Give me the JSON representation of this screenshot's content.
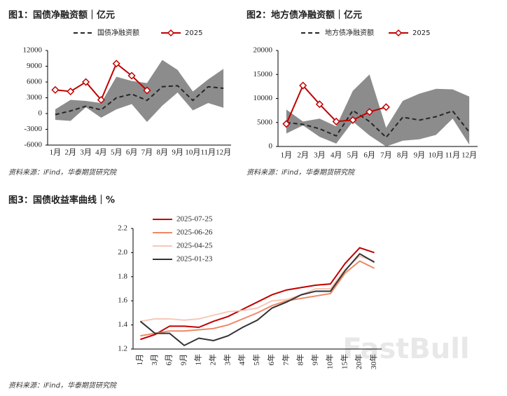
{
  "chart_data": [
    {
      "type": "line",
      "title": "图1：国债净融资额｜亿元",
      "source": "资料来源：iFind，华泰期货研究院",
      "categories": [
        "1月",
        "2月",
        "3月",
        "4月",
        "5月",
        "6月",
        "7月",
        "8月",
        "9月",
        "10月",
        "11月",
        "12月"
      ],
      "ylim": [
        -6000,
        12000
      ],
      "yticks": [
        -6000,
        -3000,
        0,
        3000,
        6000,
        9000,
        12000
      ],
      "range": {
        "color": "#8c8c8c",
        "upper": [
          800,
          2600,
          2400,
          2000,
          7000,
          6200,
          5800,
          10200,
          8300,
          4200,
          6500,
          8500
        ],
        "lower": [
          -1200,
          -1400,
          1200,
          -800,
          800,
          1800,
          -1600,
          1500,
          4000,
          600,
          2000,
          1100
        ]
      },
      "series": [
        {
          "name": "国债净融资额",
          "color": "#262626",
          "dash": true,
          "values": [
            -200,
            500,
            1400,
            700,
            3000,
            3700,
            2500,
            5100,
            5300,
            2500,
            5100,
            4800
          ]
        },
        {
          "name": "2025",
          "color": "#c00000",
          "marker": "diamond",
          "values": [
            4500,
            4200,
            6000,
            2600,
            9500,
            7200,
            4400,
            null,
            null,
            null,
            null,
            null
          ]
        }
      ]
    },
    {
      "type": "line",
      "title": "图2：地方债净融资额｜亿元",
      "source": "资料来源：iFind，华泰期货研究院",
      "categories": [
        "1月",
        "2月",
        "3月",
        "4月",
        "5月",
        "6月",
        "7月",
        "8月",
        "9月",
        "10月",
        "11月",
        "12月"
      ],
      "ylim": [
        0,
        20000
      ],
      "yticks": [
        0,
        5000,
        10000,
        15000,
        20000
      ],
      "range": {
        "color": "#8c8c8c",
        "upper": [
          7700,
          5200,
          5800,
          4200,
          11600,
          15000,
          3900,
          9500,
          11000,
          12000,
          11900,
          10400
        ],
        "lower": [
          2700,
          4400,
          2000,
          600,
          5200,
          2300,
          0,
          1200,
          1500,
          2400,
          5800,
          400
        ]
      },
      "series": [
        {
          "name": "地方债净融资额",
          "color": "#262626",
          "dash": true,
          "values": [
            5000,
            4600,
            3700,
            2200,
            7500,
            5200,
            1900,
            6100,
            5500,
            6200,
            7400,
            3000
          ]
        },
        {
          "name": "2025",
          "color": "#c00000",
          "marker": "diamond",
          "values": [
            4700,
            12700,
            8800,
            5200,
            5500,
            7200,
            8200,
            null,
            null,
            null,
            null,
            null
          ]
        }
      ]
    },
    {
      "type": "line",
      "title": "图3：国债收益率曲线｜%",
      "source": "资料来源：iFind，华泰期货研究院",
      "watermark": "FastBull",
      "categories": [
        "1月",
        "3月",
        "6月",
        "9月",
        "1年",
        "2年",
        "3年",
        "4年",
        "5年",
        "6年",
        "7年",
        "8年",
        "9年",
        "10年",
        "15年",
        "20年",
        "30年"
      ],
      "ylim": [
        1.2,
        2.2
      ],
      "yticks": [
        1.2,
        1.4,
        1.6,
        1.8,
        {
          "value": 2,
          "label": "2.0"
        },
        2.2
      ],
      "series": [
        {
          "name": "2025-07-25",
          "color": "#c00000",
          "values": [
            1.28,
            1.32,
            1.39,
            1.39,
            1.38,
            1.43,
            1.47,
            1.53,
            1.59,
            1.65,
            1.69,
            1.71,
            1.73,
            1.74,
            1.91,
            2.04,
            2.0
          ]
        },
        {
          "name": "2025-06-26",
          "color": "#ee8866",
          "values": [
            1.31,
            1.33,
            1.35,
            1.35,
            1.36,
            1.37,
            1.4,
            1.45,
            1.5,
            1.56,
            1.6,
            1.62,
            1.64,
            1.66,
            1.83,
            1.93,
            1.87
          ]
        },
        {
          "name": "2025-04-25",
          "color": "#f6c9ba",
          "values": [
            1.43,
            1.45,
            1.45,
            1.44,
            1.45,
            1.48,
            1.51,
            1.52,
            1.54,
            1.6,
            1.61,
            1.65,
            1.7,
            1.7,
            1.86,
            1.97,
            1.93
          ]
        },
        {
          "name": "2025-01-23",
          "color": "#333333",
          "values": [
            1.43,
            1.33,
            1.33,
            1.23,
            1.29,
            1.27,
            1.31,
            1.38,
            1.44,
            1.54,
            1.59,
            1.65,
            1.68,
            1.68,
            1.85,
            1.99,
            1.92
          ]
        }
      ]
    }
  ]
}
